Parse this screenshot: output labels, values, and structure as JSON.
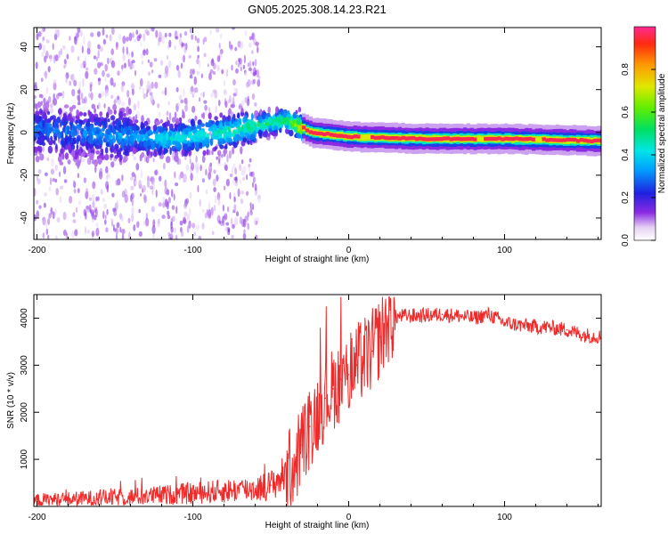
{
  "title": "GN05.2025.308.14.23.R21",
  "chart_data": [
    {
      "type": "heatmap",
      "name": "spectrogram",
      "xlabel": "Height of straight line (km)",
      "ylabel": "Frequency (Hz)",
      "xlim": [
        -202,
        162
      ],
      "ylim": [
        -50,
        49
      ],
      "xticks": [
        -200,
        -100,
        0,
        100
      ],
      "yticks": [
        -40,
        -20,
        0,
        20,
        40
      ],
      "colorbar": {
        "label": "Normalized spectral amplitude",
        "range": [
          0.0,
          1.0
        ],
        "ticks": [
          0.0,
          0.2,
          0.4,
          0.6,
          0.8
        ]
      },
      "ridge": [
        {
          "x": -200,
          "y": 2,
          "amp": 0.3
        },
        {
          "x": -180,
          "y": 0,
          "amp": 0.3
        },
        {
          "x": -160,
          "y": -1,
          "amp": 0.32
        },
        {
          "x": -140,
          "y": -2,
          "amp": 0.35
        },
        {
          "x": -120,
          "y": -3,
          "amp": 0.42
        },
        {
          "x": -100,
          "y": -2,
          "amp": 0.45
        },
        {
          "x": -80,
          "y": 0,
          "amp": 0.48
        },
        {
          "x": -60,
          "y": 3,
          "amp": 0.52
        },
        {
          "x": -40,
          "y": 6,
          "amp": 0.55
        },
        {
          "x": -25,
          "y": 0,
          "amp": 0.95
        },
        {
          "x": 0,
          "y": -2,
          "amp": 0.95
        },
        {
          "x": 50,
          "y": -3,
          "amp": 0.98
        },
        {
          "x": 100,
          "y": -3,
          "amp": 0.98
        },
        {
          "x": 162,
          "y": -4,
          "amp": 0.95
        }
      ]
    },
    {
      "type": "line",
      "name": "snr",
      "xlabel": "Height of straight line (km)",
      "ylabel": "SNR (10 * v/v)",
      "xlim": [
        -202,
        162
      ],
      "ylim": [
        0,
        4500
      ],
      "xticks": [
        -200,
        -100,
        0,
        100
      ],
      "yticks": [
        1000,
        2000,
        3000,
        4000
      ],
      "color": "#ee2a2a",
      "series": [
        {
          "name": "SNR",
          "x": [
            -200,
            -180,
            -160,
            -140,
            -120,
            -100,
            -80,
            -60,
            -50,
            -40,
            -35,
            -30,
            -25,
            -20,
            -15,
            -10,
            -5,
            0,
            5,
            10,
            15,
            20,
            25,
            30,
            35,
            40,
            50,
            60,
            70,
            80,
            90,
            100,
            110,
            120,
            130,
            140,
            150,
            162
          ],
          "y": [
            130,
            150,
            180,
            200,
            240,
            280,
            330,
            380,
            450,
            700,
            900,
            1300,
            1700,
            2000,
            2300,
            2500,
            2700,
            2800,
            3000,
            3150,
            3300,
            3600,
            3900,
            4020,
            4050,
            4050,
            4060,
            4080,
            4050,
            4000,
            4080,
            3900,
            3850,
            3820,
            3800,
            3750,
            3650,
            3600
          ]
        }
      ]
    }
  ]
}
